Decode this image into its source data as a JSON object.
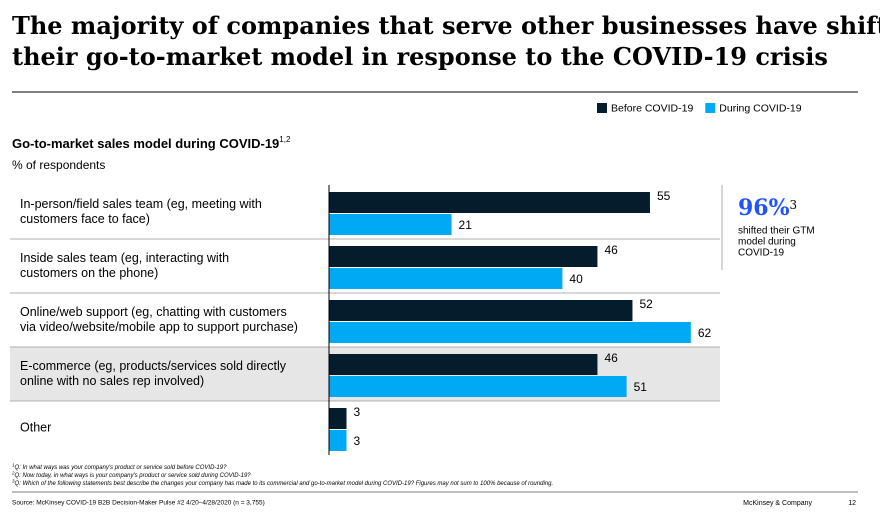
{
  "chart_data": {
    "type": "bar",
    "orientation": "horizontal",
    "title": [
      "The majority of companies that serve other businesses have shifted",
      "their go-to-market model in response to the COVID-19 crisis"
    ],
    "subtitle": "Go-to-market sales model during COVID-19",
    "subtitle_note": "1,2",
    "axis_label": "% of respondents",
    "categories": [
      [
        "In-person/field sales team (eg, meeting with",
        "customers face to face)"
      ],
      [
        "Inside sales team (eg, interacting with",
        "customers on the phone)"
      ],
      [
        "Online/web support (eg, chatting with customers",
        "via video/website/mobile app to support purchase)"
      ],
      [
        "E-commerce (eg, products/services sold directly",
        "online with no sales rep involved)"
      ],
      [
        "Other"
      ]
    ],
    "highlighted": [
      3
    ],
    "series": [
      {
        "name": "Before COVID-19",
        "color": "#051c2c",
        "values": [
          55,
          46,
          52,
          46,
          3
        ]
      },
      {
        "name": "During COVID-19",
        "color": "#00a9f4",
        "values": [
          21,
          40,
          62,
          51,
          3
        ]
      }
    ],
    "xlim": [
      0,
      67
    ],
    "callout": {
      "value": 96,
      "label": "96%",
      "note": "3",
      "text": [
        "shifted their GTM",
        "model during",
        "COVID-19"
      ],
      "color": "#2251ff"
    },
    "footnotes": [
      {
        "mark": "1",
        "text": "Q: In what ways was your company's product or service sold before COVID-19?"
      },
      {
        "mark": "2",
        "text": "Q: Now today, in what ways is your company's product or service sold during COVID-19?"
      },
      {
        "mark": "3",
        "text": "Q: Which of the following statements best describe the changes your company has made to its commercial and go-to-market model during COVID-19? Figures may not sum to 100% because of rounding."
      }
    ],
    "source": "Source: McKinsey COVID-19 B2B Decision-Maker Pulse #2 4/20–4/28/2020 (n = 3,755)",
    "brand": "McKinsey & Company",
    "page_number": "12"
  }
}
